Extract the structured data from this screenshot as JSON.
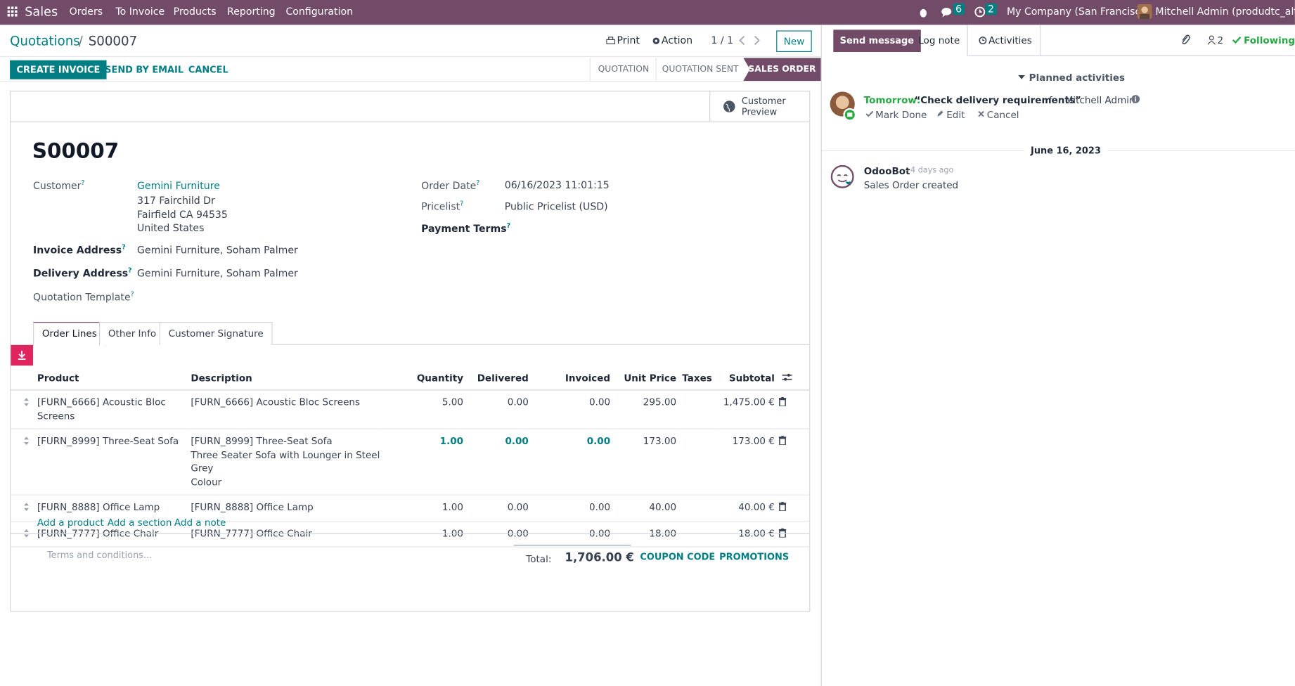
{
  "navbar": {
    "app": "Sales",
    "menu": [
      "Orders",
      "To Invoice",
      "Products",
      "Reporting",
      "Configuration"
    ],
    "messages_count": "6",
    "activities_count": "2",
    "company": "My Company (San Francisco)",
    "user": "Mitchell Admin (produdtc_alterr)"
  },
  "breadcrumb": {
    "parent": "Quotations",
    "separator": "/",
    "current": "S00007"
  },
  "control": {
    "print": "Print",
    "action": "Action",
    "pager": "1 / 1",
    "new": "New"
  },
  "buttons": [
    "CREATE INVOICE",
    "SEND BY EMAIL",
    "CANCEL"
  ],
  "statusbar": {
    "steps": [
      "QUOTATION",
      "QUOTATION SENT",
      "SALES ORDER"
    ],
    "active": 2
  },
  "form": {
    "customer_preview": [
      "Customer",
      "Preview"
    ],
    "name": "S00007",
    "help_mark": "?",
    "customer": {
      "label": "Customer",
      "name": "Gemini Furniture",
      "address": [
        "317 Fairchild Dr",
        "Fairfield CA 94535",
        "United States"
      ]
    },
    "invoice_address": {
      "label": "Invoice Address",
      "value": "Gemini Furniture, Soham Palmer"
    },
    "delivery_address": {
      "label": "Delivery Address",
      "value": "Gemini Furniture, Soham Palmer"
    },
    "quotation_template": {
      "label": "Quotation Template"
    },
    "order_date": {
      "label": "Order Date",
      "value": "06/16/2023 11:01:15"
    },
    "pricelist": {
      "label": "Pricelist",
      "value": "Public Pricelist (USD)"
    },
    "payment_terms": {
      "label": "Payment Terms"
    }
  },
  "tabs": {
    "items": [
      "Order Lines",
      "Other Info",
      "Customer Signature"
    ],
    "active": 0
  },
  "table": {
    "headers": [
      "Product",
      "Description",
      "Quantity",
      "Delivered",
      "Invoiced",
      "Unit Price",
      "Taxes",
      "Subtotal"
    ],
    "rows": [
      {
        "product": "[FURN_6666] Acoustic Bloc Screens",
        "description": [
          "[FURN_6666] Acoustic Bloc Screens"
        ],
        "quantity": "5.00",
        "delivered": "0.00",
        "invoiced": "0.00",
        "unit_price": "295.00",
        "subtotal": "1,475.00 €",
        "highlight": false
      },
      {
        "product": "[FURN_8999] Three-Seat Sofa",
        "description": [
          "[FURN_8999] Three-Seat Sofa",
          "Three Seater Sofa with Lounger in Steel Grey",
          "Colour"
        ],
        "quantity": "1.00",
        "delivered": "0.00",
        "invoiced": "0.00",
        "unit_price": "173.00",
        "subtotal": "173.00 €",
        "highlight": true
      },
      {
        "product": "[FURN_8888] Office Lamp",
        "description": [
          "[FURN_8888] Office Lamp"
        ],
        "quantity": "1.00",
        "delivered": "0.00",
        "invoiced": "0.00",
        "unit_price": "40.00",
        "subtotal": "40.00 €",
        "highlight": false
      },
      {
        "product": "[FURN_7777] Office Chair",
        "description": [
          "[FURN_7777] Office Chair"
        ],
        "quantity": "1.00",
        "delivered": "0.00",
        "invoiced": "0.00",
        "unit_price": "18.00",
        "subtotal": "18.00 €",
        "highlight": false
      }
    ],
    "add_links": [
      "Add a product",
      "Add a section",
      "Add a note"
    ]
  },
  "footer": {
    "terms_placeholder": "Terms and conditions...",
    "total_label": "Total:",
    "total": "1,706.00 €",
    "coupon": "COUPON CODE",
    "promotions": "PROMOTIONS"
  },
  "chatter": {
    "send_message": "Send message",
    "log_note": "Log note",
    "activities": "Activities",
    "followers": "2",
    "following": "Following",
    "planned_title": "Planned activities",
    "activity": {
      "due": "Tomorrow:",
      "summary": "“Check delivery requirements”",
      "assignee": "for Mitchell Admin",
      "actions": [
        "Mark Done",
        "Edit",
        "Cancel"
      ]
    },
    "date": "June 16, 2023",
    "message": {
      "author": "OdooBot",
      "time": "- 4 days ago",
      "body": "Sales Order created"
    }
  }
}
